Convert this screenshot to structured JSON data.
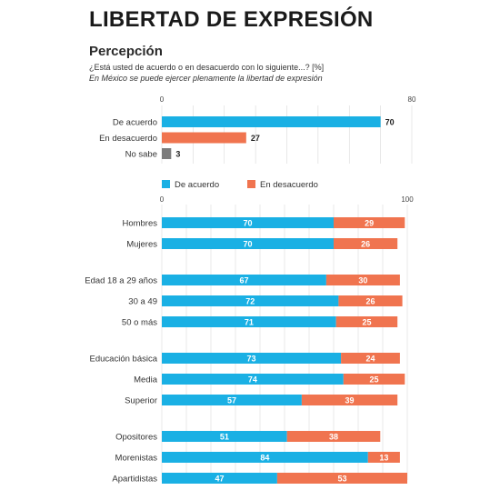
{
  "header": {
    "title": "LIBERTAD DE EXPRESIÓN",
    "section": "Percepción",
    "question": "¿Está usted de acuerdo o en desacuerdo con lo siguiente...? [%]",
    "statement": "En México se puede ejercer plenamente la libertad de expresión"
  },
  "colors": {
    "acuerdo": "#1ab0e4",
    "desacuerdo": "#f0744f",
    "no_sabe": "#7b7b7b",
    "grid": "#d9d9d9"
  },
  "chart_data": [
    {
      "type": "bar",
      "orientation": "horizontal",
      "categories": [
        "De acuerdo",
        "En desacuerdo",
        "No sabe"
      ],
      "values": [
        70,
        27,
        3
      ],
      "xlim": [
        0,
        80
      ],
      "xticks": [
        0,
        80
      ],
      "grid": true
    },
    {
      "type": "bar",
      "orientation": "horizontal",
      "stacked": true,
      "legend_position": "top-left",
      "xlim": [
        0,
        100
      ],
      "xticks": [
        0,
        100
      ],
      "grid": true,
      "groups": [
        {
          "categories": [
            "Hombres",
            "Mujeres"
          ]
        },
        {
          "categories": [
            "Edad 18 a 29 años",
            "30 a 49",
            "50 o más"
          ]
        },
        {
          "categories": [
            "Educación básica",
            "Media",
            "Superior"
          ]
        },
        {
          "categories": [
            "Opositores",
            "Morenistas",
            "Apartidistas"
          ]
        }
      ],
      "categories": [
        "Hombres",
        "Mujeres",
        "Edad 18 a 29 años",
        "30 a 49",
        "50 o más",
        "Educación básica",
        "Media",
        "Superior",
        "Opositores",
        "Morenistas",
        "Apartidistas"
      ],
      "series": [
        {
          "name": "De acuerdo",
          "values": [
            70,
            70,
            67,
            72,
            71,
            73,
            74,
            57,
            51,
            84,
            47
          ]
        },
        {
          "name": "En desacuerdo",
          "values": [
            29,
            26,
            30,
            26,
            25,
            24,
            25,
            39,
            38,
            13,
            53
          ]
        }
      ]
    }
  ]
}
